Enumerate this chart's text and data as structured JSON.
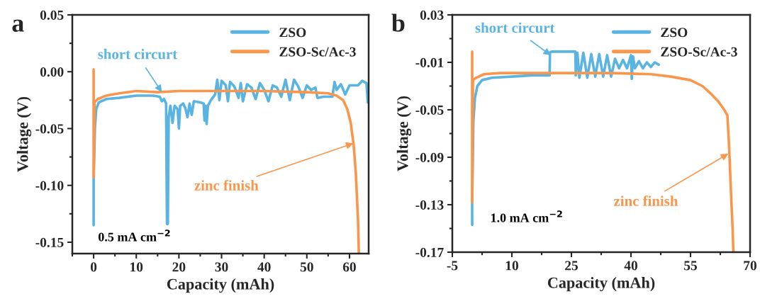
{
  "chart_data": [
    {
      "type": "line",
      "title": "a",
      "xlabel": "Capacity (mAh)",
      "ylabel": "Voltage (V)",
      "xlim": [
        -5,
        64.5
      ],
      "ylim": [
        -0.16,
        0.05
      ],
      "xticks": [
        0,
        10,
        20,
        30,
        40,
        50,
        60
      ],
      "yticks": [
        {
          "value": 0.05,
          "label": "0.05"
        },
        {
          "value": 0.0,
          "label": "0.00"
        },
        {
          "value": -0.05,
          "label": "-0.05"
        },
        {
          "value": -0.1,
          "label": "-0.10"
        },
        {
          "value": -0.15,
          "label": "-0.15"
        }
      ],
      "legend": "top right",
      "grid": false,
      "annotations": [
        {
          "text": "short circurt",
          "x": 16,
          "y": -0.018
        },
        {
          "text": "zinc finish",
          "x": 60.9,
          "y": -0.063
        },
        "0.5 mA cm$^{−2}$"
      ],
      "series": [
        {
          "name": "ZSO",
          "color": "#5ab4e1",
          "x": [
            0,
            0,
            0.3,
            0.6,
            1.2,
            3,
            6,
            10,
            14,
            15.5,
            16,
            16.5,
            17,
            17.2,
            17.4,
            17.6,
            18,
            18.5,
            19,
            19.7,
            20,
            20.3,
            21,
            21.5,
            22,
            22.5,
            23,
            23.5,
            25,
            25.8,
            26,
            26.3,
            26.5,
            26.8,
            27.5,
            28.5,
            29,
            29.5,
            30,
            31,
            31.5,
            32,
            33,
            34,
            34.5,
            35,
            36,
            37,
            38,
            39,
            40,
            41,
            42,
            43,
            44,
            45,
            46,
            47,
            48,
            49,
            50,
            51,
            52,
            52.5,
            54,
            56,
            56.5,
            57,
            58,
            59,
            60,
            62,
            63,
            64,
            64.3
          ],
          "values": [
            -0.135,
            -0.095,
            -0.05,
            -0.033,
            -0.027,
            -0.024,
            -0.023,
            -0.021,
            -0.021,
            -0.022,
            -0.026,
            -0.024,
            -0.028,
            -0.134,
            -0.134,
            -0.04,
            -0.03,
            -0.045,
            -0.03,
            -0.033,
            -0.05,
            -0.03,
            -0.028,
            -0.032,
            -0.04,
            -0.028,
            -0.038,
            -0.026,
            -0.027,
            -0.028,
            -0.043,
            -0.03,
            -0.046,
            -0.03,
            -0.025,
            -0.02,
            -0.007,
            -0.025,
            -0.008,
            -0.012,
            -0.026,
            -0.009,
            -0.013,
            -0.023,
            -0.01,
            -0.026,
            -0.011,
            -0.014,
            -0.024,
            -0.01,
            -0.016,
            -0.026,
            -0.012,
            -0.014,
            -0.022,
            -0.007,
            -0.025,
            -0.007,
            -0.013,
            -0.023,
            -0.012,
            -0.016,
            -0.014,
            -0.023,
            -0.022,
            -0.022,
            -0.009,
            -0.016,
            -0.011,
            -0.02,
            -0.012,
            -0.012,
            -0.008,
            -0.01,
            -0.027
          ]
        },
        {
          "name": "ZSO-Sc/Ac-3",
          "color": "#f9964b",
          "x": [
            0,
            0,
            0.2,
            1,
            3,
            6,
            10,
            15,
            20,
            30,
            40,
            50,
            55,
            57,
            58.5,
            59.5,
            60.3,
            61,
            61.5,
            62,
            62.2
          ],
          "values": [
            0.002,
            -0.093,
            -0.027,
            -0.024,
            -0.021,
            -0.019,
            -0.017,
            -0.018,
            -0.017,
            -0.017,
            -0.017,
            -0.018,
            -0.019,
            -0.021,
            -0.025,
            -0.033,
            -0.045,
            -0.065,
            -0.09,
            -0.13,
            -0.16
          ]
        }
      ]
    },
    {
      "type": "line",
      "title": "b",
      "xlabel": "Capacity (mAh)",
      "ylabel": "Voltage (V)",
      "xlim": [
        -5,
        70
      ],
      "ylim": [
        -0.17,
        0.03
      ],
      "xticks": [
        -5,
        10,
        25,
        40,
        55,
        70
      ],
      "yticks": [
        0.03,
        -0.01,
        -0.05,
        -0.09,
        -0.13,
        -0.17
      ],
      "legend": "top right",
      "grid": false,
      "annotations": [
        {
          "text": "short circurt",
          "x": 19.8,
          "y": -0.004
        },
        {
          "text": "zinc finish",
          "x": 64.5,
          "y": -0.087
        },
        "1.0 mA cm$^{−2}$"
      ],
      "series": [
        {
          "name": "ZSO",
          "color": "#5ab4e1",
          "x": [
            0,
            0,
            0.3,
            0.7,
            1.3,
            2.5,
            5,
            10,
            15,
            19.5,
            19.6,
            20,
            26,
            26.1,
            26.5,
            27,
            28,
            29,
            30,
            31,
            32,
            33,
            34,
            35,
            36,
            37,
            38,
            39,
            40,
            40.2,
            40.5,
            41,
            42,
            43,
            44,
            45,
            46,
            47
          ],
          "values": [
            -0.147,
            -0.128,
            -0.06,
            -0.04,
            -0.03,
            -0.025,
            -0.023,
            -0.022,
            -0.021,
            -0.021,
            -0.0015,
            -0.001,
            -0.001,
            -0.021,
            -0.002,
            -0.023,
            -0.002,
            -0.023,
            -0.003,
            -0.022,
            -0.003,
            -0.022,
            -0.004,
            -0.022,
            -0.007,
            -0.015,
            -0.008,
            -0.015,
            -0.004,
            -0.024,
            -0.005,
            -0.015,
            -0.009,
            -0.015,
            -0.01,
            -0.014,
            -0.01,
            -0.012
          ]
        },
        {
          "name": "ZSO-Sc/Ac-3",
          "color": "#f9964b",
          "x": [
            0,
            0,
            0.2,
            1,
            3,
            7,
            20,
            35,
            45,
            50,
            55,
            58,
            60,
            62,
            63.5,
            64.3,
            64.7,
            65.2,
            65.6,
            65.8
          ],
          "values": [
            -0.001,
            -0.128,
            -0.025,
            -0.023,
            -0.02,
            -0.019,
            -0.019,
            -0.019,
            -0.02,
            -0.022,
            -0.025,
            -0.03,
            -0.036,
            -0.043,
            -0.05,
            -0.055,
            -0.08,
            -0.12,
            -0.15,
            -0.17
          ]
        }
      ]
    }
  ]
}
